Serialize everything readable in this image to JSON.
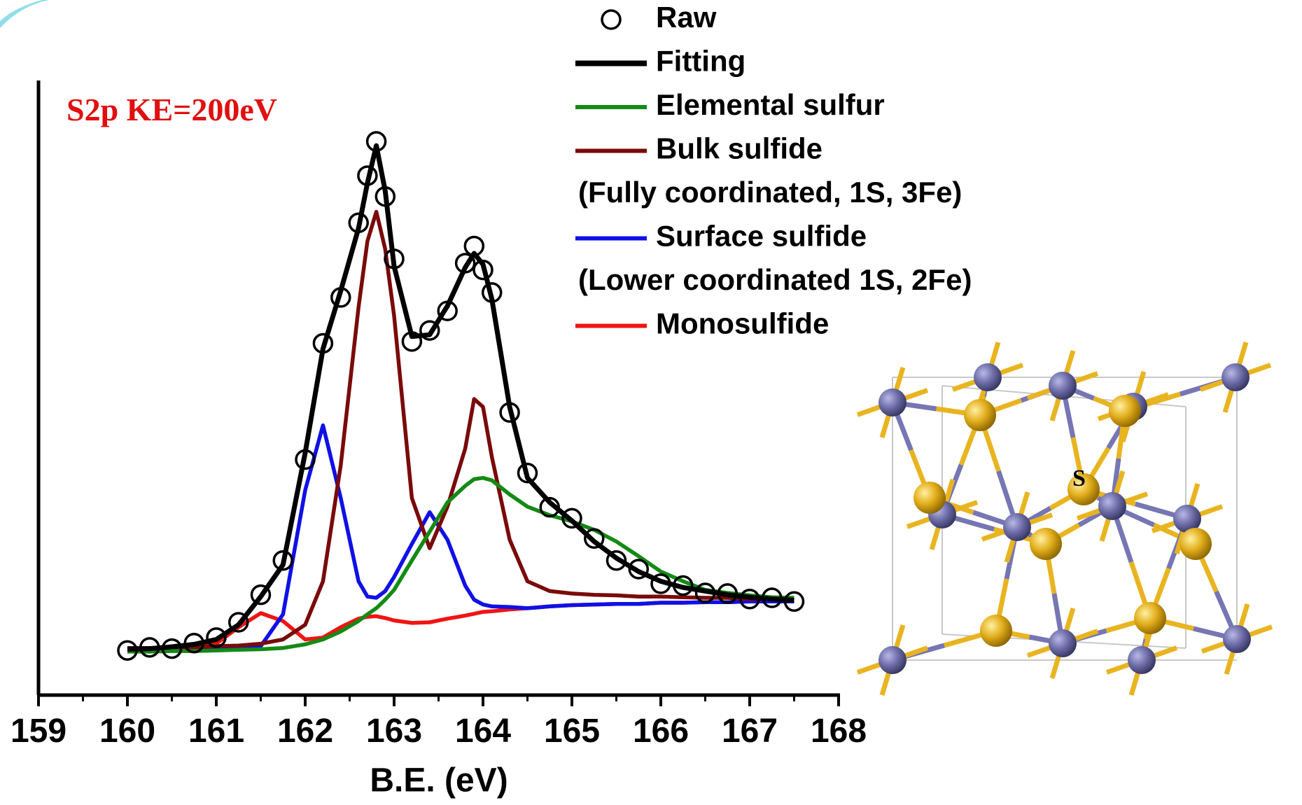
{
  "chart_data": {
    "type": "line",
    "title": "S2p KE=200eV",
    "x_label": "B.E. (eV)",
    "x": [
      160,
      160.25,
      160.5,
      160.75,
      161,
      161.25,
      161.5,
      161.75,
      162,
      162.2,
      162.4,
      162.6,
      162.7,
      162.8,
      162.9,
      163,
      163.2,
      163.4,
      163.6,
      163.8,
      163.9,
      164,
      164.1,
      164.3,
      164.5,
      164.75,
      165,
      165.25,
      165.5,
      165.75,
      166,
      166.25,
      166.5,
      166.75,
      167,
      167.25,
      167.5
    ],
    "series": [
      {
        "name": "Raw",
        "color": "#000000",
        "marker": "circle",
        "values": [
          7.3,
          7.8,
          7.6,
          8.5,
          9.4,
          11.9,
          16.4,
          22.0,
          38.5,
          57.5,
          65.0,
          77.2,
          84.9,
          90.5,
          81.5,
          71.3,
          57.8,
          59.6,
          62.8,
          70.6,
          73.4,
          69.5,
          65.8,
          46.2,
          36.3,
          30.7,
          28.9,
          25.6,
          22.0,
          20.6,
          18.2,
          17.9,
          16.7,
          16.6,
          15.7,
          15.9,
          15.3
        ]
      },
      {
        "name": "Fitting",
        "color": "#000000",
        "values": [
          7.5,
          7.6,
          7.9,
          8.3,
          9.1,
          11.5,
          16.1,
          21.3,
          39.6,
          56.6,
          66.1,
          76.3,
          83.7,
          89.8,
          82.4,
          70.1,
          58.6,
          58.9,
          63.6,
          69.9,
          72.2,
          70.4,
          64.7,
          47.1,
          35.5,
          31.5,
          28.5,
          25.1,
          22.4,
          20.2,
          18.6,
          17.6,
          17.0,
          16.4,
          16.0,
          15.7,
          15.5
        ]
      },
      {
        "name": "Elemental sulfur",
        "color": "#148a14",
        "values": [
          7.1,
          7.1,
          7.2,
          7.2,
          7.3,
          7.4,
          7.5,
          7.7,
          8.3,
          9.1,
          10.4,
          12.1,
          13.2,
          14.2,
          15.6,
          17.2,
          22.0,
          26.7,
          31.5,
          34.2,
          35.3,
          35.5,
          35.1,
          32.8,
          30.8,
          29.4,
          28.4,
          27.0,
          25.1,
          22.7,
          20.2,
          18.6,
          17.2,
          16.7,
          16.3,
          16.0,
          15.9
        ]
      },
      {
        "name": "Bulk sulfide",
        "description": "(Fully coordinated, 1S, 3Fe)",
        "color": "#7a0a0a",
        "values": [
          7.7,
          7.7,
          7.7,
          7.8,
          8.0,
          8.1,
          8.4,
          9.1,
          11.5,
          18.6,
          37.6,
          63.4,
          74.2,
          79.0,
          72.9,
          62.0,
          32.2,
          24.0,
          30.8,
          40.3,
          48.4,
          47.1,
          38.9,
          25.4,
          18.6,
          17.0,
          16.6,
          16.4,
          16.3,
          16.1,
          16.1,
          16.0,
          15.9,
          15.9,
          15.7,
          15.7,
          15.6
        ]
      },
      {
        "name": "Surface sulfide",
        "description": "(Lower coordinated 1S, 2Fe)",
        "color": "#1010e6",
        "values": [
          7.3,
          7.3,
          7.3,
          7.3,
          7.5,
          7.6,
          8.0,
          13.2,
          33.5,
          44.1,
          32.2,
          18.6,
          16.1,
          15.9,
          17.0,
          19.3,
          24.7,
          29.9,
          25.4,
          17.9,
          15.6,
          14.8,
          14.5,
          14.4,
          14.2,
          14.5,
          14.7,
          14.8,
          14.9,
          14.9,
          15.1,
          15.1,
          15.2,
          15.2,
          15.3,
          15.3,
          15.3
        ]
      },
      {
        "name": "Monosulfide",
        "color": "#f01414",
        "values": [
          7.5,
          7.6,
          7.7,
          8.0,
          8.4,
          11.1,
          13.4,
          12.1,
          9.1,
          9.4,
          11.1,
          12.5,
          12.8,
          12.9,
          12.6,
          12.2,
          11.8,
          11.9,
          12.5,
          13.0,
          13.3,
          13.6,
          13.7,
          14.0,
          14.2,
          14.5,
          14.7,
          14.8,
          14.9,
          14.9,
          15.1,
          15.1,
          15.2,
          15.2,
          15.3,
          15.3,
          15.3
        ]
      }
    ],
    "xlim": [
      159,
      168
    ],
    "xticks": [
      159,
      160,
      161,
      162,
      163,
      164,
      165,
      166,
      167,
      168
    ],
    "xminorticks": [
      159.5,
      160.5,
      161.5,
      162.5,
      163.5,
      164.5,
      165.5,
      166.5,
      167.5
    ],
    "ylim": [
      0,
      100
    ],
    "legend": "top-right"
  },
  "inset": {
    "label": "S"
  }
}
